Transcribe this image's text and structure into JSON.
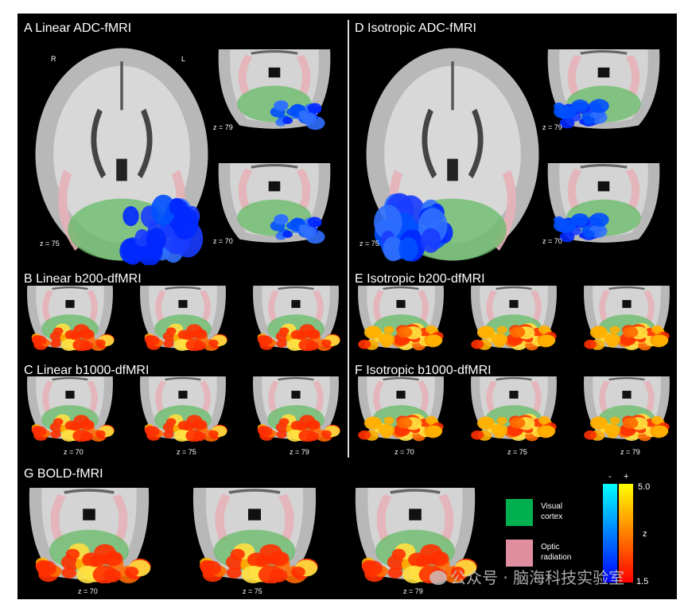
{
  "panels": {
    "A": {
      "label": "A  Linear ADC-fMRI",
      "activation": "blue",
      "orient_r": "R",
      "orient_l": "L",
      "z": [
        "z = 75",
        "z = 79",
        "z = 70"
      ]
    },
    "D": {
      "label": "D  Isotropic ADC-fMRI",
      "activation": "blue",
      "z": [
        "z = 75",
        "z = 79",
        "z = 70"
      ]
    },
    "B": {
      "label": "B  Linear b200-dfMRI",
      "activation": "hot"
    },
    "C": {
      "label": "C  Linear b1000-dfMRI",
      "activation": "hot",
      "z": [
        "z = 70",
        "z = 75",
        "z = 79"
      ]
    },
    "E": {
      "label": "E  Isotropic b200-dfMRI",
      "activation": "hot"
    },
    "F": {
      "label": "F  Isotropic b1000-dfMRI",
      "activation": "hot",
      "z": [
        "z = 70",
        "z = 75",
        "z = 79"
      ]
    },
    "G": {
      "label": "G  BOLD-fMRI",
      "activation": "hot",
      "z": [
        "z = 70",
        "z = 75",
        "z = 79"
      ]
    }
  },
  "legend": {
    "visual_cortex": {
      "label_1": "Visual",
      "label_2": "cortex",
      "color": "#00b050"
    },
    "optic_radiation": {
      "label_1": "Optic",
      "label_2": "radiation",
      "color": "#e08fa0"
    }
  },
  "colorbar": {
    "neg_sign": "-",
    "pos_sign": "+",
    "max": "5.0",
    "min": "1.5",
    "unit": "z",
    "neg_colors": [
      "#00ffff",
      "#0000ff"
    ],
    "pos_colors": [
      "#ffff00",
      "#ff0000"
    ]
  },
  "watermark": "公众号 · 脑海科技实验室"
}
